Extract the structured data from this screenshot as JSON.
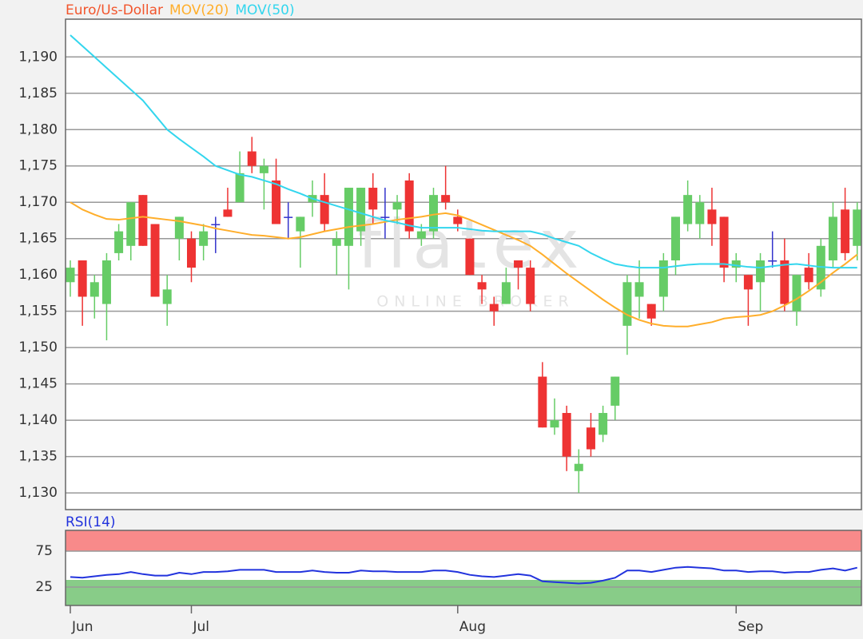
{
  "chart_data": [
    {
      "type": "candlestick",
      "watermark": "flatex",
      "watermark_sub": "ONLINE BROKER",
      "categories": [
        "Jun",
        null,
        null,
        null,
        null,
        null,
        null,
        null,
        null,
        null,
        "Jul",
        null,
        null,
        null,
        null,
        null,
        null,
        null,
        null,
        null,
        null,
        null,
        null,
        null,
        null,
        null,
        null,
        null,
        null,
        null,
        null,
        null,
        "Aug",
        null,
        null,
        null,
        null,
        null,
        null,
        null,
        null,
        null,
        null,
        null,
        null,
        null,
        null,
        null,
        null,
        null,
        null,
        null,
        null,
        null,
        null,
        "Sep",
        null,
        null,
        null,
        null,
        null,
        null,
        null,
        null,
        null,
        null
      ],
      "series": [
        {
          "name": "Euro/Us-Dollar",
          "color": "#f2552c",
          "open": [
            1.159,
            1.162,
            1.157,
            1.156,
            1.163,
            1.164,
            1.171,
            1.167,
            1.156,
            1.165,
            1.165,
            1.164,
            1.167,
            1.169,
            1.17,
            1.177,
            1.174,
            1.173,
            1.168,
            1.166,
            1.17,
            1.171,
            1.164,
            1.164,
            1.166,
            1.172,
            1.168,
            1.169,
            1.173,
            1.165,
            1.166,
            1.171,
            1.168,
            1.165,
            1.159,
            1.156,
            1.156,
            1.162,
            1.161,
            1.146,
            1.139,
            1.141,
            1.133,
            1.139,
            1.138,
            1.142,
            1.153,
            1.157,
            1.156,
            1.157,
            1.162,
            1.167,
            1.167,
            1.169,
            1.168,
            1.161,
            1.16,
            1.159,
            1.162,
            1.162,
            1.155,
            1.161,
            1.158,
            1.162,
            1.169,
            1.164
          ],
          "high": [
            1.162,
            1.162,
            1.16,
            1.163,
            1.167,
            1.17,
            1.171,
            1.167,
            1.16,
            1.168,
            1.166,
            1.167,
            1.168,
            1.172,
            1.177,
            1.179,
            1.176,
            1.176,
            1.17,
            1.168,
            1.173,
            1.174,
            1.166,
            1.172,
            1.172,
            1.174,
            1.172,
            1.171,
            1.174,
            1.167,
            1.172,
            1.175,
            1.169,
            1.165,
            1.16,
            1.157,
            1.161,
            1.162,
            1.162,
            1.148,
            1.143,
            1.142,
            1.136,
            1.141,
            1.142,
            1.146,
            1.16,
            1.162,
            1.156,
            1.163,
            1.168,
            1.173,
            1.171,
            1.172,
            1.168,
            1.163,
            1.16,
            1.163,
            1.166,
            1.165,
            1.16,
            1.163,
            1.165,
            1.17,
            1.172,
            1.17
          ],
          "low": [
            1.157,
            1.153,
            1.154,
            1.151,
            1.162,
            1.162,
            1.164,
            1.157,
            1.153,
            1.162,
            1.159,
            1.162,
            1.163,
            1.168,
            1.17,
            1.174,
            1.169,
            1.167,
            1.165,
            1.161,
            1.168,
            1.166,
            1.16,
            1.158,
            1.164,
            1.167,
            1.165,
            1.167,
            1.165,
            1.164,
            1.165,
            1.169,
            1.166,
            1.16,
            1.156,
            1.153,
            1.156,
            1.158,
            1.155,
            1.139,
            1.138,
            1.133,
            1.13,
            1.135,
            1.137,
            1.14,
            1.149,
            1.154,
            1.153,
            1.155,
            1.16,
            1.166,
            1.165,
            1.164,
            1.159,
            1.159,
            1.153,
            1.155,
            1.161,
            1.155,
            1.153,
            1.158,
            1.157,
            1.161,
            1.162,
            1.162
          ],
          "close": [
            1.161,
            1.157,
            1.159,
            1.162,
            1.166,
            1.17,
            1.164,
            1.157,
            1.158,
            1.168,
            1.161,
            1.166,
            1.167,
            1.168,
            1.174,
            1.175,
            1.175,
            1.167,
            1.168,
            1.168,
            1.171,
            1.167,
            1.165,
            1.172,
            1.172,
            1.169,
            1.168,
            1.17,
            1.166,
            1.166,
            1.171,
            1.17,
            1.167,
            1.16,
            1.158,
            1.155,
            1.159,
            1.161,
            1.156,
            1.139,
            1.14,
            1.135,
            1.134,
            1.136,
            1.141,
            1.146,
            1.159,
            1.159,
            1.154,
            1.162,
            1.168,
            1.171,
            1.17,
            1.167,
            1.161,
            1.162,
            1.158,
            1.162,
            1.162,
            1.156,
            1.16,
            1.159,
            1.164,
            1.168,
            1.163,
            1.169
          ]
        },
        {
          "name": "MOV(20)",
          "color": "#ffae2b",
          "values": [
            1.17,
            1.169,
            1.1683,
            1.1677,
            1.1676,
            1.1678,
            1.168,
            1.1678,
            1.1676,
            1.1674,
            1.1671,
            1.1668,
            1.1664,
            1.1661,
            1.1658,
            1.1655,
            1.1654,
            1.1652,
            1.165,
            1.1652,
            1.1656,
            1.166,
            1.1663,
            1.1666,
            1.1668,
            1.167,
            1.1673,
            1.1676,
            1.1678,
            1.168,
            1.1683,
            1.1685,
            1.1682,
            1.1676,
            1.1669,
            1.1662,
            1.1655,
            1.1648,
            1.164,
            1.1628,
            1.1615,
            1.1602,
            1.159,
            1.1578,
            1.1566,
            1.1555,
            1.1545,
            1.1538,
            1.1533,
            1.153,
            1.1529,
            1.1529,
            1.1532,
            1.1535,
            1.154,
            1.1542,
            1.1543,
            1.1545,
            1.155,
            1.1558,
            1.1567,
            1.1578,
            1.159,
            1.1603,
            1.1615,
            1.1628
          ]
        },
        {
          "name": "MOV(50)",
          "color": "#33d6ee",
          "values": [
            1.193,
            1.1915,
            1.19,
            1.1885,
            1.187,
            1.1855,
            1.184,
            1.182,
            1.18,
            1.1787,
            1.1775,
            1.1763,
            1.175,
            1.1744,
            1.1738,
            1.1735,
            1.173,
            1.1725,
            1.1718,
            1.1712,
            1.1705,
            1.17,
            1.1695,
            1.169,
            1.1685,
            1.168,
            1.1675,
            1.1672,
            1.1668,
            1.1665,
            1.1665,
            1.1665,
            1.1665,
            1.1663,
            1.1661,
            1.166,
            1.166,
            1.166,
            1.166,
            1.1656,
            1.165,
            1.1645,
            1.164,
            1.163,
            1.1622,
            1.1615,
            1.1612,
            1.161,
            1.161,
            1.161,
            1.1612,
            1.1614,
            1.1615,
            1.1615,
            1.1615,
            1.1613,
            1.1611,
            1.161,
            1.1612,
            1.1614,
            1.1615,
            1.1613,
            1.1611,
            1.161,
            1.161,
            1.161
          ]
        }
      ],
      "up_color": "#66cc66",
      "down_color": "#ee3333",
      "doji_color": "#3333cc",
      "ylim": [
        1.1277,
        1.1952
      ],
      "yticks": [
        {
          "value": 1.13,
          "label": "1,130"
        },
        {
          "value": 1.135,
          "label": "1,135"
        },
        {
          "value": 1.14,
          "label": "1,140"
        },
        {
          "value": 1.145,
          "label": "1,145"
        },
        {
          "value": 1.15,
          "label": "1,150"
        },
        {
          "value": 1.155,
          "label": "1,155"
        },
        {
          "value": 1.16,
          "label": "1,160"
        },
        {
          "value": 1.165,
          "label": "1,165"
        },
        {
          "value": 1.17,
          "label": "1,170"
        },
        {
          "value": 1.175,
          "label": "1,175"
        },
        {
          "value": 1.18,
          "label": "1,180"
        },
        {
          "value": 1.185,
          "label": "1,185"
        },
        {
          "value": 1.19,
          "label": "1,190"
        }
      ],
      "grid": true
    },
    {
      "type": "line",
      "series": [
        {
          "name": "RSI(14)",
          "color": "#2233dd",
          "values": [
            39,
            38,
            40,
            42,
            43,
            46,
            43,
            41,
            41,
            45,
            43,
            46,
            46,
            47,
            49,
            49,
            49,
            46,
            46,
            46,
            48,
            46,
            45,
            45,
            48,
            47,
            47,
            46,
            46,
            46,
            48,
            48,
            46,
            42,
            40,
            39,
            41,
            43,
            41,
            33,
            32,
            31,
            30,
            31,
            34,
            38,
            48,
            48,
            46,
            49,
            52,
            53,
            52,
            51,
            48,
            48,
            46,
            47,
            47,
            45,
            46,
            46,
            49,
            51,
            48,
            52
          ]
        }
      ],
      "ylim": [
        0,
        100
      ],
      "yticks": [
        25,
        75
      ],
      "grid": true,
      "upper_band_color": "#f88a8a",
      "lower_band_color": "#88cc88"
    }
  ]
}
